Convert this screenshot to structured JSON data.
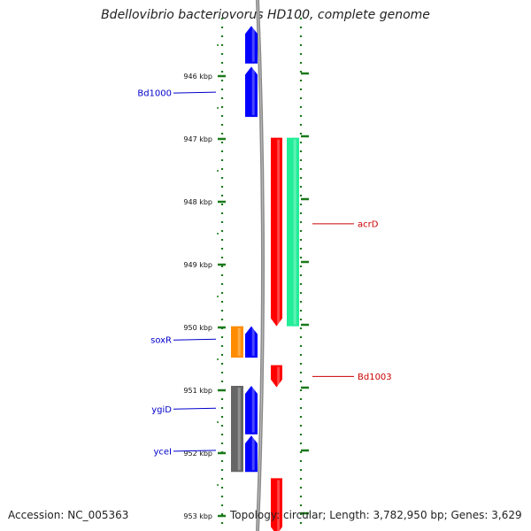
{
  "title": "Bdellovibrio bacteriovorus HD100, complete genome",
  "footer": {
    "accession": "Accession: NC_005363",
    "summary": "Topology: circular; Length: 3,782,950 bp; Genes: 3,629"
  },
  "ruler": {
    "unit": "kbp",
    "ticks": [
      {
        "label": "946 kbp",
        "kbp": 946
      },
      {
        "label": "947 kbp",
        "kbp": 947
      },
      {
        "label": "948 kbp",
        "kbp": 948
      },
      {
        "label": "949 kbp",
        "kbp": 949
      },
      {
        "label": "950 kbp",
        "kbp": 950
      },
      {
        "label": "951 kbp",
        "kbp": 951
      },
      {
        "label": "952 kbp",
        "kbp": 952
      },
      {
        "label": "953 kbp",
        "kbp": 953
      }
    ]
  },
  "colors": {
    "forward_cds": "#0000ff",
    "reverse_cds": "#ff0000",
    "rna_feature": "#22ee99",
    "orange_feature": "#ff8c00",
    "gray_feature": "#666666",
    "backbone": "#888888",
    "ruler_tick": "#1a7a1a",
    "label_forward": "#0000cc",
    "label_reverse": "#cc0000"
  },
  "features": [
    {
      "track": "forward",
      "color": "forward_cds",
      "start_kbp": 945.2,
      "end_kbp": 945.8,
      "strand": "+"
    },
    {
      "track": "forward",
      "color": "forward_cds",
      "start_kbp": 945.85,
      "end_kbp": 946.65,
      "strand": "+"
    },
    {
      "track": "reverse",
      "color": "reverse_cds",
      "start_kbp": 946.98,
      "end_kbp": 949.98,
      "strand": "-"
    },
    {
      "track": "rna",
      "color": "rna_feature",
      "start_kbp": 946.98,
      "end_kbp": 949.98,
      "strand": "-"
    },
    {
      "track": "forward_outer",
      "color": "orange_feature",
      "start_kbp": 949.98,
      "end_kbp": 950.48,
      "strand": "+"
    },
    {
      "track": "forward",
      "color": "forward_cds",
      "start_kbp": 949.98,
      "end_kbp": 950.48,
      "strand": "+"
    },
    {
      "track": "reverse",
      "color": "reverse_cds",
      "start_kbp": 950.6,
      "end_kbp": 950.95,
      "strand": "-"
    },
    {
      "track": "forward_outer",
      "color": "gray_feature",
      "start_kbp": 950.93,
      "end_kbp": 952.3,
      "strand": "+"
    },
    {
      "track": "forward",
      "color": "forward_cds",
      "start_kbp": 950.93,
      "end_kbp": 951.7,
      "strand": "+"
    },
    {
      "track": "forward",
      "color": "forward_cds",
      "start_kbp": 951.72,
      "end_kbp": 952.3,
      "strand": "+"
    },
    {
      "track": "reverse",
      "color": "reverse_cds",
      "start_kbp": 952.4,
      "end_kbp": 953.3,
      "strand": "-"
    }
  ],
  "labels": [
    {
      "text": "Bd1000",
      "side": "left",
      "kbp": 946.27,
      "color": "label_forward"
    },
    {
      "text": "soxR",
      "side": "left",
      "kbp": 950.2,
      "color": "label_forward"
    },
    {
      "text": "ygiD",
      "side": "left",
      "kbp": 951.3,
      "color": "label_forward"
    },
    {
      "text": "yceI",
      "side": "left",
      "kbp": 951.97,
      "color": "label_forward"
    },
    {
      "text": "acrD",
      "side": "right",
      "kbp": 948.35,
      "color": "label_reverse"
    },
    {
      "text": "Bd1003",
      "side": "right",
      "kbp": 950.78,
      "color": "label_reverse"
    }
  ]
}
